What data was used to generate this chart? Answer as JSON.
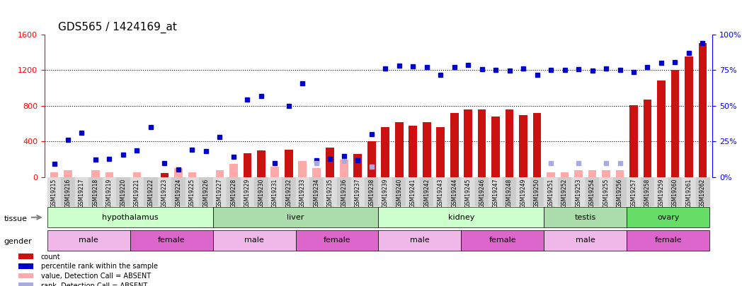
{
  "title": "GDS565 / 1424169_at",
  "samples": [
    "GSM19215",
    "GSM19216",
    "GSM19217",
    "GSM19218",
    "GSM19219",
    "GSM19220",
    "GSM19221",
    "GSM19222",
    "GSM19223",
    "GSM19224",
    "GSM19225",
    "GSM19226",
    "GSM19227",
    "GSM19228",
    "GSM19229",
    "GSM19230",
    "GSM19231",
    "GSM19232",
    "GSM19233",
    "GSM19234",
    "GSM19235",
    "GSM19236",
    "GSM19237",
    "GSM19238",
    "GSM19239",
    "GSM19240",
    "GSM19241",
    "GSM19242",
    "GSM19243",
    "GSM19244",
    "GSM19245",
    "GSM19246",
    "GSM19247",
    "GSM19248",
    "GSM19249",
    "GSM19250",
    "GSM19251",
    "GSM19252",
    "GSM19253",
    "GSM19254",
    "GSM19255",
    "GSM19256",
    "GSM19257",
    "GSM19258",
    "GSM19259",
    "GSM19260",
    "GSM19261",
    "GSM19262"
  ],
  "count": [
    null,
    null,
    null,
    null,
    null,
    null,
    null,
    null,
    50,
    null,
    null,
    null,
    null,
    null,
    270,
    300,
    null,
    310,
    null,
    null,
    330,
    null,
    260,
    400,
    560,
    620,
    580,
    620,
    560,
    720,
    760,
    760,
    680,
    760,
    700,
    720,
    null,
    null,
    null,
    null,
    null,
    null,
    810,
    870,
    1080,
    1200,
    1350,
    1500
  ],
  "count_absent": [
    60,
    80,
    null,
    80,
    60,
    null,
    60,
    null,
    null,
    100,
    60,
    null,
    80,
    150,
    null,
    null,
    120,
    null,
    180,
    100,
    null,
    200,
    null,
    null,
    null,
    null,
    null,
    null,
    null,
    null,
    null,
    null,
    null,
    null,
    null,
    null,
    60,
    60,
    80,
    80,
    80,
    80,
    null,
    null,
    null,
    null,
    null,
    null
  ],
  "rank": [
    150,
    420,
    500,
    200,
    210,
    250,
    300,
    560,
    160,
    90,
    310,
    290,
    450,
    230,
    870,
    910,
    160,
    800,
    1050,
    190,
    210,
    240,
    190,
    480,
    1220,
    1250,
    1240,
    1230,
    1150,
    1230,
    1260,
    1210,
    1200,
    1190,
    1220,
    1150,
    1200,
    1200,
    1210,
    1190,
    1220,
    1200,
    1180,
    1230,
    1280,
    1290,
    1390,
    1500
  ],
  "rank_absent": [
    null,
    null,
    null,
    null,
    null,
    null,
    null,
    null,
    null,
    null,
    null,
    null,
    null,
    null,
    null,
    null,
    null,
    null,
    null,
    null,
    null,
    null,
    null,
    null,
    null,
    null,
    null,
    null,
    null,
    null,
    null,
    null,
    null,
    null,
    null,
    null,
    null,
    null,
    null,
    null,
    null,
    null,
    null,
    null,
    null,
    null,
    null,
    null
  ],
  "rank_absent_vals": [
    null,
    null,
    null,
    null,
    null,
    null,
    null,
    null,
    null,
    null,
    null,
    null,
    null,
    null,
    null,
    null,
    null,
    null,
    null,
    155,
    null,
    185,
    null,
    120,
    null,
    null,
    null,
    null,
    null,
    null,
    null,
    null,
    null,
    null,
    null,
    null,
    155,
    null,
    155,
    null,
    155,
    155,
    null,
    null,
    null,
    null,
    null,
    null
  ],
  "tissues": [
    {
      "name": "hypothalamus",
      "start": 0,
      "end": 11
    },
    {
      "name": "liver",
      "start": 12,
      "end": 23
    },
    {
      "name": "kidney",
      "start": 24,
      "end": 35
    },
    {
      "name": "testis",
      "start": 36,
      "end": 41
    },
    {
      "name": "ovary",
      "start": 42,
      "end": 47
    }
  ],
  "genders": [
    {
      "name": "male",
      "start": 0,
      "end": 5,
      "color": "#f0b8e8"
    },
    {
      "name": "female",
      "start": 6,
      "end": 11,
      "color": "#dd66cc"
    },
    {
      "name": "male",
      "start": 12,
      "end": 17,
      "color": "#f0b8e8"
    },
    {
      "name": "female",
      "start": 18,
      "end": 23,
      "color": "#dd66cc"
    },
    {
      "name": "male",
      "start": 24,
      "end": 29,
      "color": "#f0b8e8"
    },
    {
      "name": "female",
      "start": 30,
      "end": 35,
      "color": "#dd66cc"
    },
    {
      "name": "male",
      "start": 36,
      "end": 41,
      "color": "#f0b8e8"
    },
    {
      "name": "female",
      "start": 42,
      "end": 47,
      "color": "#dd66cc"
    }
  ],
  "tissue_color_light": "#ccffcc",
  "tissue_color_dark": "#88ee88",
  "ylim_left": [
    0,
    1600
  ],
  "ylim_right": [
    0,
    100
  ],
  "yticks_left": [
    0,
    400,
    800,
    1200,
    1600
  ],
  "yticks_right": [
    0,
    25,
    50,
    75,
    100
  ],
  "color_count": "#cc1111",
  "color_count_absent": "#ffaaaa",
  "color_rank": "#0000cc",
  "color_rank_absent": "#aaaadd",
  "bg_color": "#ffffff"
}
